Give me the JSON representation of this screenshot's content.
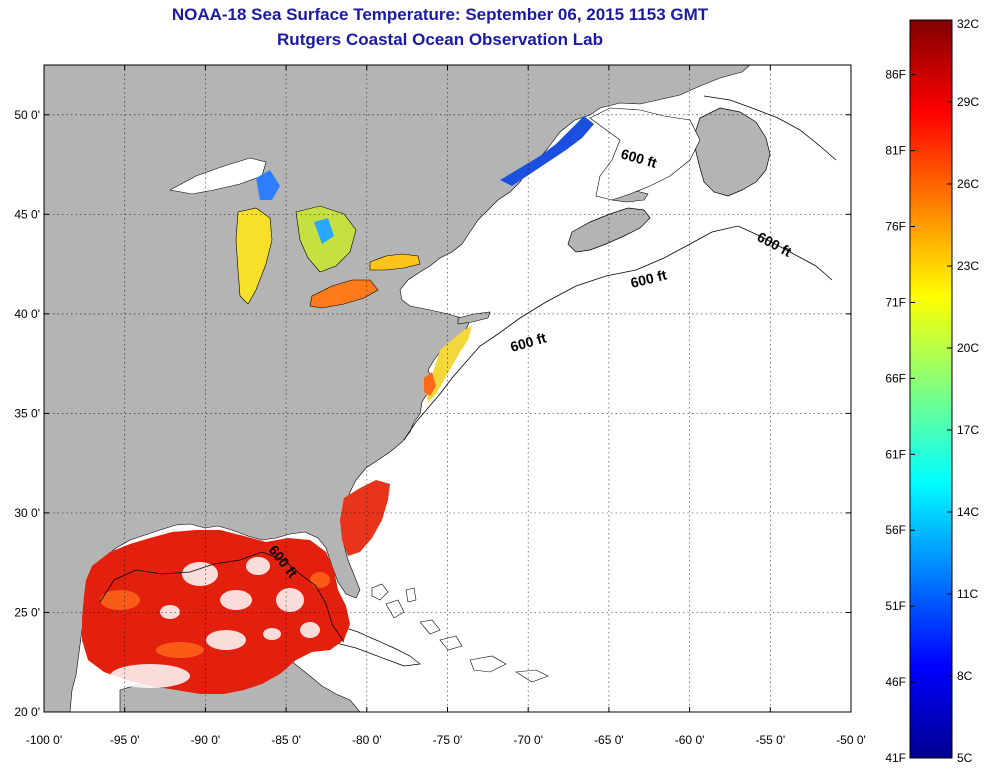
{
  "header": {
    "title": "NOAA-18 Sea Surface Temperature:  September 06, 2015 1153 GMT",
    "subtitle": "Rutgers Coastal Ocean Observation Lab"
  },
  "map": {
    "lon_range": [
      -100,
      -50
    ],
    "lat_range": [
      20,
      52.5
    ],
    "lon_ticks": [
      {
        "value": -100,
        "label": "-100 0'"
      },
      {
        "value": -95,
        "label": "-95 0'"
      },
      {
        "value": -90,
        "label": "-90 0'"
      },
      {
        "value": -85,
        "label": "-85 0'"
      },
      {
        "value": -80,
        "label": "-80 0'"
      },
      {
        "value": -75,
        "label": "-75 0'"
      },
      {
        "value": -70,
        "label": "-70 0'"
      },
      {
        "value": -65,
        "label": "-65 0'"
      },
      {
        "value": -60,
        "label": "-60 0'"
      },
      {
        "value": -55,
        "label": "-55 0'"
      },
      {
        "value": -50,
        "label": "-50 0'"
      }
    ],
    "lat_ticks": [
      {
        "value": 50,
        "label": "50 0'"
      },
      {
        "value": 45,
        "label": "45 0'"
      },
      {
        "value": 40,
        "label": "40 0'"
      },
      {
        "value": 35,
        "label": "35 0'"
      },
      {
        "value": 30,
        "label": "30 0'"
      },
      {
        "value": 25,
        "label": "25 0'"
      },
      {
        "value": 20,
        "label": "20 0'"
      }
    ],
    "grid": "dotted",
    "contour_labels": [
      "600 ft",
      "600 ft",
      "600 ft",
      "600 ft",
      "600 ft"
    ],
    "land_color": "#b4b4b4",
    "ocean_color": "#ffffff"
  },
  "colorbar": {
    "min_c": 5,
    "max_c": 32,
    "celsius_labels": [
      {
        "value": 32,
        "label": "32C"
      },
      {
        "value": 29,
        "label": "29C"
      },
      {
        "value": 26,
        "label": "26C"
      },
      {
        "value": 23,
        "label": "23C"
      },
      {
        "value": 20,
        "label": "20C"
      },
      {
        "value": 17,
        "label": "17C"
      },
      {
        "value": 14,
        "label": "14C"
      },
      {
        "value": 11,
        "label": "11C"
      },
      {
        "value": 8,
        "label": "8C"
      },
      {
        "value": 5,
        "label": "5C"
      }
    ],
    "fahrenheit_labels": [
      {
        "value": 86,
        "label": "86F"
      },
      {
        "value": 81,
        "label": "81F"
      },
      {
        "value": 76,
        "label": "76F"
      },
      {
        "value": 71,
        "label": "71F"
      },
      {
        "value": 66,
        "label": "66F"
      },
      {
        "value": 61,
        "label": "61F"
      },
      {
        "value": 56,
        "label": "56F"
      },
      {
        "value": 51,
        "label": "51F"
      },
      {
        "value": 46,
        "label": "46F"
      },
      {
        "value": 41,
        "label": "41F"
      }
    ],
    "colors": [
      "#00008f",
      "#0000ff",
      "#0080ff",
      "#00ffff",
      "#80ff80",
      "#ffff00",
      "#ff8000",
      "#ff0000",
      "#800000"
    ]
  }
}
